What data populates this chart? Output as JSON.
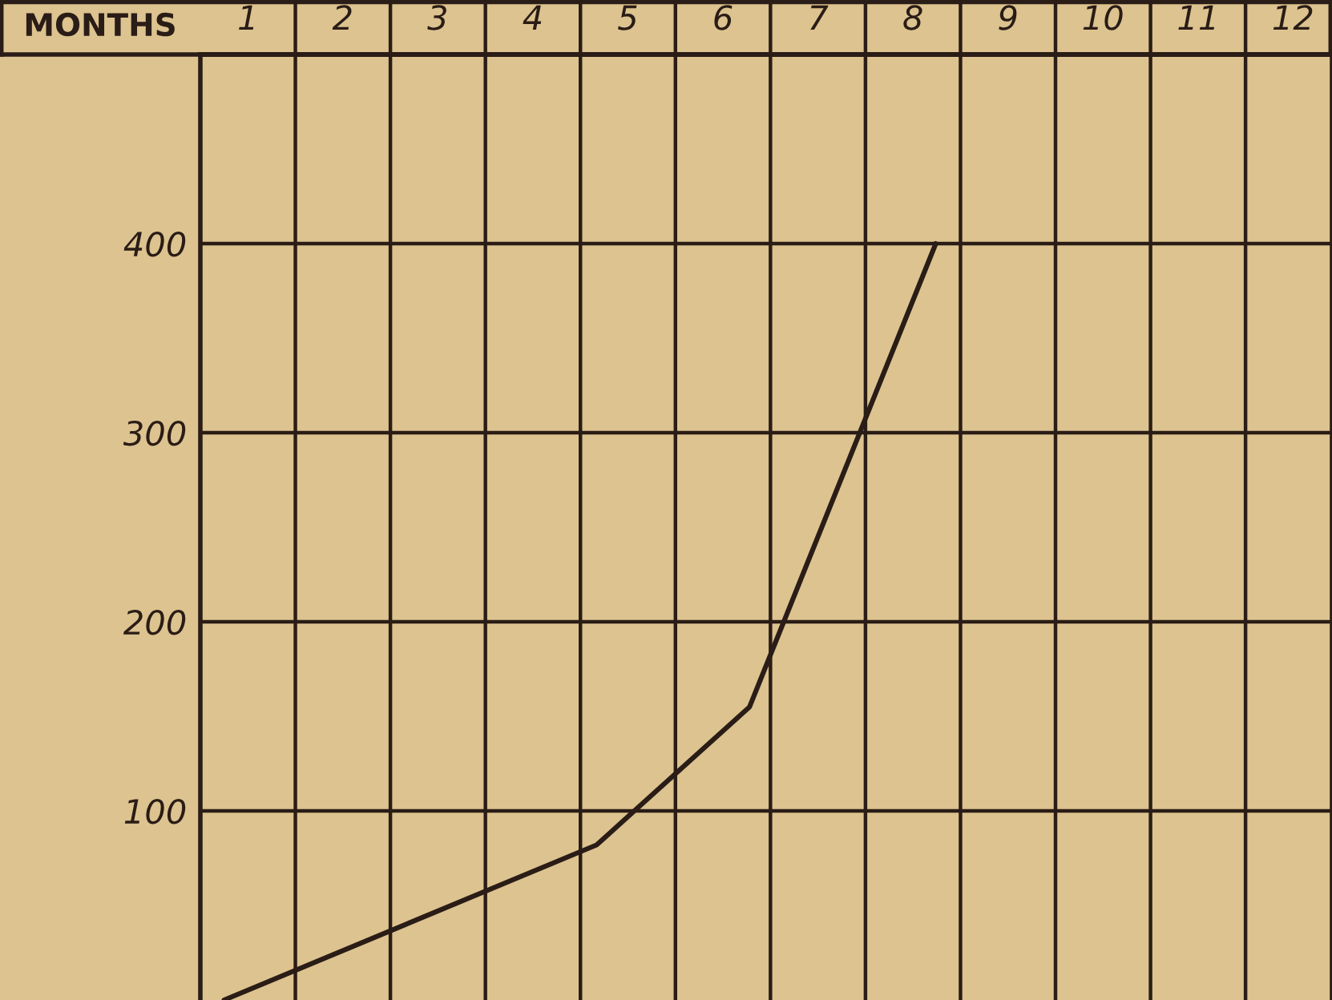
{
  "chart_data": {
    "type": "line",
    "xlabel": "MONTHS",
    "x": [
      0.75,
      4.67,
      6.28,
      8.24
    ],
    "series": [
      {
        "color": "#2a1c16",
        "values": [
          0,
          82,
          155,
          400
        ]
      }
    ],
    "xlim": [
      0.5,
      12.41
    ],
    "xticks": [
      1,
      2,
      3,
      4,
      5,
      6,
      7,
      8,
      9,
      10,
      11,
      12,
      {
        "value": 1.5,
        "label": null
      },
      {
        "value": 2.5,
        "label": null
      },
      {
        "value": 3.5,
        "label": null
      },
      {
        "value": 4.5,
        "label": null
      },
      {
        "value": 5.5,
        "label": null
      },
      {
        "value": 6.5,
        "label": null
      },
      {
        "value": 7.5,
        "label": null
      },
      {
        "value": 8.5,
        "label": null
      },
      {
        "value": 9.5,
        "label": null
      },
      {
        "value": 10.5,
        "label": null
      },
      {
        "value": 11.5,
        "label": null
      }
    ],
    "ylim": [
      0,
      500
    ],
    "yticks": [
      100,
      200,
      300,
      400
    ],
    "grid": true,
    "marker": "none",
    "line_style": "solid"
  }
}
